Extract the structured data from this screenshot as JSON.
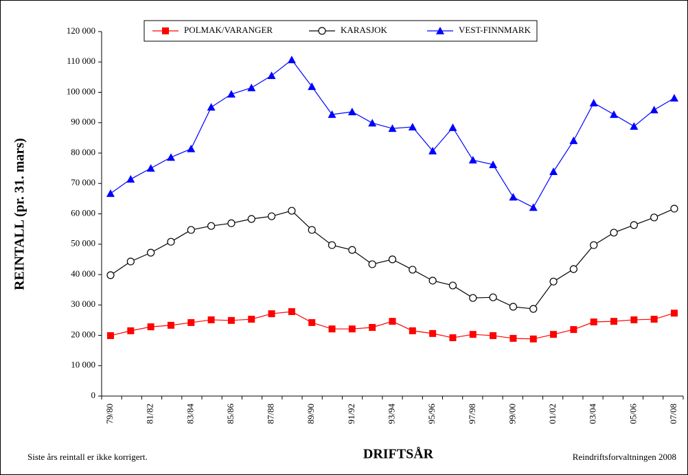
{
  "chart_data": {
    "type": "line",
    "x_label": "DRIFTSÅR",
    "y_label": "REINTALL (pr. 31. mars)",
    "annotations": [
      "Siste års reintall er ikke korrigert.",
      "Reindriftsforvaltningen 2008"
    ],
    "categories": [
      "79/80",
      null,
      "81/82",
      null,
      "83/84",
      null,
      "85/86",
      null,
      "87/88",
      null,
      "89/90",
      null,
      "91/92",
      null,
      "93/94",
      null,
      "95/96",
      null,
      "97/98",
      null,
      "99/00",
      null,
      "01/02",
      null,
      "03/04",
      null,
      "05/06",
      null,
      "07/08"
    ],
    "series": [
      {
        "name": "POLMAK/VARANGER",
        "color": "#ff0000",
        "marker": "square",
        "values": [
          19900,
          21500,
          22800,
          23300,
          24200,
          25100,
          24900,
          25300,
          27100,
          27800,
          24200,
          22100,
          22100,
          22600,
          24600,
          21500,
          20600,
          19200,
          20300,
          19900,
          19000,
          18800,
          20300,
          21900,
          24400,
          24600,
          25100,
          25300,
          27300
        ]
      },
      {
        "name": "KARASJOK",
        "color": "#000000",
        "marker": "circle",
        "values": [
          39800,
          44300,
          47200,
          50800,
          54700,
          56000,
          56900,
          58300,
          59200,
          61000,
          54700,
          49700,
          48100,
          43400,
          45000,
          41600,
          38000,
          36400,
          32300,
          32500,
          29400,
          28700,
          37700,
          41800,
          49700,
          53800,
          56300,
          58800,
          61700
        ]
      },
      {
        "name": "VEST-FINNMARK",
        "color": "#0000ff",
        "marker": "triangle",
        "values": [
          66700,
          71400,
          75000,
          78600,
          81400,
          95100,
          99400,
          101500,
          105500,
          110700,
          101900,
          92700,
          93600,
          89900,
          88100,
          88600,
          80700,
          88400,
          77700,
          76200,
          65500,
          62100,
          73900,
          84100,
          96500,
          92700,
          88800,
          94200,
          98100
        ]
      }
    ],
    "ylim": [
      0,
      120000
    ],
    "yticks": [
      0,
      {
        "value": 10000,
        "label": "10 000"
      },
      {
        "value": 20000,
        "label": "20 000"
      },
      {
        "value": 30000,
        "label": "30 000"
      },
      {
        "value": 40000,
        "label": "40 000"
      },
      {
        "value": 50000,
        "label": "50 000"
      },
      {
        "value": 60000,
        "label": "60 000"
      },
      {
        "value": 70000,
        "label": "70 000"
      },
      {
        "value": 80000,
        "label": "80 000"
      },
      {
        "value": 90000,
        "label": "90 000"
      },
      {
        "value": 100000,
        "label": "100 000"
      },
      {
        "value": 110000,
        "label": "110 000"
      },
      {
        "value": 120000,
        "label": "120 000"
      }
    ],
    "legend": "top",
    "grid": false
  }
}
